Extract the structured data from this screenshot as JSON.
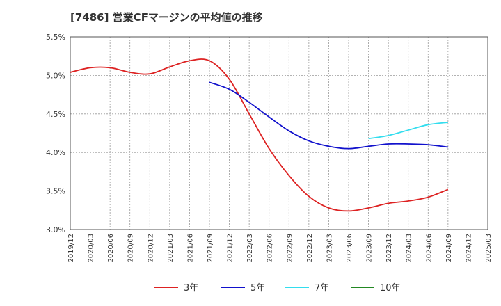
{
  "chart_data": {
    "type": "line",
    "title": "[7486]  営業CFマージンの平均値の推移",
    "ylim": [
      3.0,
      5.5
    ],
    "y_ticks": [
      "3.0%",
      "3.5%",
      "4.0%",
      "4.5%",
      "5.0%",
      "5.5%"
    ],
    "x_ticks": [
      "2019/12",
      "2020/03",
      "2020/06",
      "2020/09",
      "2020/12",
      "2021/03",
      "2021/06",
      "2021/09",
      "2021/12",
      "2022/03",
      "2022/06",
      "2022/09",
      "2022/12",
      "2023/03",
      "2023/06",
      "2023/09",
      "2023/12",
      "2024/03",
      "2024/06",
      "2024/09",
      "2024/12",
      "2025/03"
    ],
    "grid": true,
    "legend_position": "bottom",
    "series": [
      {
        "name": "3年",
        "color": "#dd2222",
        "x": [
          "2019/12",
          "2020/03",
          "2020/06",
          "2020/09",
          "2020/12",
          "2021/03",
          "2021/06",
          "2021/09",
          "2021/12",
          "2022/03",
          "2022/06",
          "2022/09",
          "2022/12",
          "2023/03",
          "2023/06",
          "2023/09",
          "2023/12",
          "2024/03",
          "2024/06",
          "2024/09"
        ],
        "values": [
          5.04,
          5.1,
          5.1,
          5.04,
          5.02,
          5.11,
          5.19,
          5.19,
          4.95,
          4.5,
          4.05,
          3.7,
          3.43,
          3.28,
          3.24,
          3.28,
          3.34,
          3.37,
          3.42,
          3.52
        ]
      },
      {
        "name": "5年",
        "color": "#1111cc",
        "x": [
          "2021/09",
          "2021/12",
          "2022/03",
          "2022/06",
          "2022/09",
          "2022/12",
          "2023/03",
          "2023/06",
          "2023/09",
          "2023/12",
          "2024/03",
          "2024/06",
          "2024/09"
        ],
        "values": [
          4.91,
          4.82,
          4.65,
          4.46,
          4.28,
          4.15,
          4.08,
          4.05,
          4.08,
          4.11,
          4.11,
          4.1,
          4.07
        ]
      },
      {
        "name": "7年",
        "color": "#33ddee",
        "x": [
          "2023/09",
          "2023/12",
          "2024/03",
          "2024/06",
          "2024/09"
        ],
        "values": [
          4.18,
          4.22,
          4.29,
          4.36,
          4.39
        ]
      },
      {
        "name": "10年",
        "color": "#228822",
        "x": [],
        "values": []
      }
    ]
  }
}
